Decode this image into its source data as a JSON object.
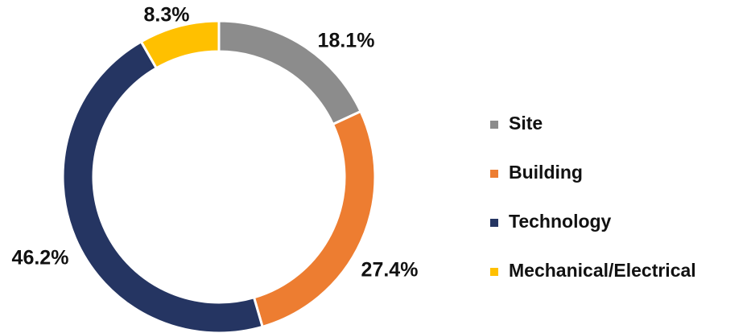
{
  "chart_data": {
    "type": "donut",
    "categories": [
      "Site",
      "Building",
      "Technology",
      "Mechanical/Electrical"
    ],
    "values": [
      18.1,
      27.4,
      46.2,
      8.3
    ],
    "value_labels": [
      "18.1%",
      "27.4%",
      "46.2%",
      "8.3%"
    ],
    "colors": [
      "#8c8c8c",
      "#ed7d31",
      "#253562",
      "#ffc000"
    ],
    "legend": "right"
  }
}
